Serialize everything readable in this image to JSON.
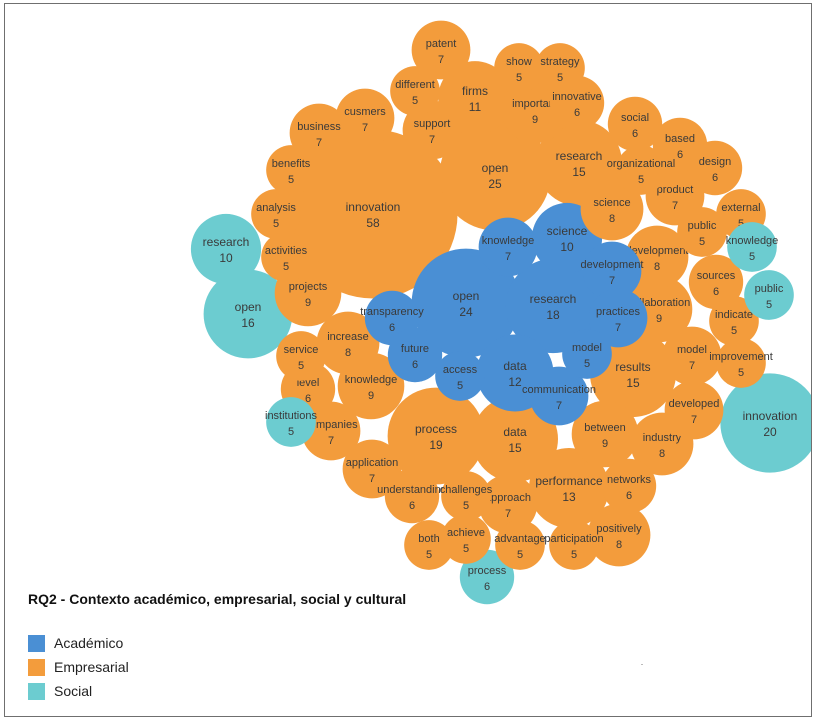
{
  "chart_data": {
    "type": "bubble",
    "title": "RQ2 - Contexto académico, empresarial, social y cultural",
    "legend": [
      {
        "name": "Académico",
        "color": "#4a8fd4"
      },
      {
        "name": "Empresarial",
        "color": "#f39c3c"
      },
      {
        "name": "Social",
        "color": "#6cccd0"
      }
    ],
    "bubbles": [
      {
        "word": "innovation",
        "value": 58,
        "category": "Empresarial"
      },
      {
        "word": "open",
        "value": 25,
        "category": "Empresarial"
      },
      {
        "word": "open",
        "value": 24,
        "category": "Académico"
      },
      {
        "word": "innovation",
        "value": 20,
        "category": "Social"
      },
      {
        "word": "process",
        "value": 19,
        "category": "Empresarial"
      },
      {
        "word": "research",
        "value": 18,
        "category": "Académico"
      },
      {
        "word": "open",
        "value": 16,
        "category": "Social"
      },
      {
        "word": "research",
        "value": 15,
        "category": "Empresarial"
      },
      {
        "word": "results",
        "value": 15,
        "category": "Empresarial"
      },
      {
        "word": "data",
        "value": 15,
        "category": "Empresarial"
      },
      {
        "word": "performance",
        "value": 13,
        "category": "Empresarial"
      },
      {
        "word": "data",
        "value": 12,
        "category": "Académico"
      },
      {
        "word": "firms",
        "value": 11,
        "category": "Empresarial"
      },
      {
        "word": "science",
        "value": 10,
        "category": "Académico"
      },
      {
        "word": "research",
        "value": 10,
        "category": "Social"
      },
      {
        "word": "important",
        "value": 9,
        "category": "Empresarial"
      },
      {
        "word": "projects",
        "value": 9,
        "category": "Empresarial"
      },
      {
        "word": "knowledge",
        "value": 9,
        "category": "Empresarial"
      },
      {
        "word": "collaboration",
        "value": 9,
        "category": "Empresarial"
      },
      {
        "word": "between",
        "value": 9,
        "category": "Empresarial"
      },
      {
        "word": "science",
        "value": 8,
        "category": "Empresarial"
      },
      {
        "word": "development",
        "value": 8,
        "category": "Empresarial"
      },
      {
        "word": "increase",
        "value": 8,
        "category": "Empresarial"
      },
      {
        "word": "industry",
        "value": 8,
        "category": "Empresarial"
      },
      {
        "word": "positively",
        "value": 8,
        "category": "Empresarial"
      },
      {
        "word": "knowledge",
        "value": 7,
        "category": "Académico"
      },
      {
        "word": "development",
        "value": 7,
        "category": "Académico"
      },
      {
        "word": "practices",
        "value": 7,
        "category": "Académico"
      },
      {
        "word": "communication",
        "value": 7,
        "category": "Académico"
      },
      {
        "word": "patent",
        "value": 7,
        "category": "Empresarial"
      },
      {
        "word": "cusmers",
        "value": 7,
        "category": "Empresarial"
      },
      {
        "word": "business",
        "value": 7,
        "category": "Empresarial"
      },
      {
        "word": "support",
        "value": 7,
        "category": "Empresarial"
      },
      {
        "word": "product",
        "value": 7,
        "category": "Empresarial"
      },
      {
        "word": "model",
        "value": 7,
        "category": "Empresarial"
      },
      {
        "word": "developed",
        "value": 7,
        "category": "Empresarial"
      },
      {
        "word": "companies",
        "value": 7,
        "category": "Empresarial"
      },
      {
        "word": "application",
        "value": 7,
        "category": "Empresarial"
      },
      {
        "word": "approach",
        "value": 7,
        "category": "Empresarial"
      },
      {
        "word": "transparency",
        "value": 6,
        "category": "Académico"
      },
      {
        "word": "future",
        "value": 6,
        "category": "Académico"
      },
      {
        "word": "innovative",
        "value": 6,
        "category": "Empresarial"
      },
      {
        "word": "social",
        "value": 6,
        "category": "Empresarial"
      },
      {
        "word": "based",
        "value": 6,
        "category": "Empresarial"
      },
      {
        "word": "design",
        "value": 6,
        "category": "Empresarial"
      },
      {
        "word": "sources",
        "value": 6,
        "category": "Empresarial"
      },
      {
        "word": "level",
        "value": 6,
        "category": "Empresarial"
      },
      {
        "word": "understanding",
        "value": 6,
        "category": "Empresarial"
      },
      {
        "word": "networks",
        "value": 6,
        "category": "Empresarial"
      },
      {
        "word": "process",
        "value": 6,
        "category": "Social"
      },
      {
        "word": "access",
        "value": 5,
        "category": "Académico"
      },
      {
        "word": "model",
        "value": 5,
        "category": "Académico"
      },
      {
        "word": "show",
        "value": 5,
        "category": "Empresarial"
      },
      {
        "word": "strategy",
        "value": 5,
        "category": "Empresarial"
      },
      {
        "word": "different",
        "value": 5,
        "category": "Empresarial"
      },
      {
        "word": "organizational",
        "value": 5,
        "category": "Empresarial"
      },
      {
        "word": "benefits",
        "value": 5,
        "category": "Empresarial"
      },
      {
        "word": "analysis",
        "value": 5,
        "category": "Empresarial"
      },
      {
        "word": "activities",
        "value": 5,
        "category": "Empresarial"
      },
      {
        "word": "external",
        "value": 5,
        "category": "Empresarial"
      },
      {
        "word": "public",
        "value": 5,
        "category": "Empresarial"
      },
      {
        "word": "indicate",
        "value": 5,
        "category": "Empresarial"
      },
      {
        "word": "service",
        "value": 5,
        "category": "Empresarial"
      },
      {
        "word": "improvement",
        "value": 5,
        "category": "Empresarial"
      },
      {
        "word": "challenges",
        "value": 5,
        "category": "Empresarial"
      },
      {
        "word": "both",
        "value": 5,
        "category": "Empresarial"
      },
      {
        "word": "achieve",
        "value": 5,
        "category": "Empresarial"
      },
      {
        "word": "advantage",
        "value": 5,
        "category": "Empresarial"
      },
      {
        "word": "participation",
        "value": 5,
        "category": "Empresarial"
      },
      {
        "word": "knowledge",
        "value": 5,
        "category": "Social"
      },
      {
        "word": "public",
        "value": 5,
        "category": "Social"
      },
      {
        "word": "institutions",
        "value": 5,
        "category": "Social"
      }
    ]
  }
}
